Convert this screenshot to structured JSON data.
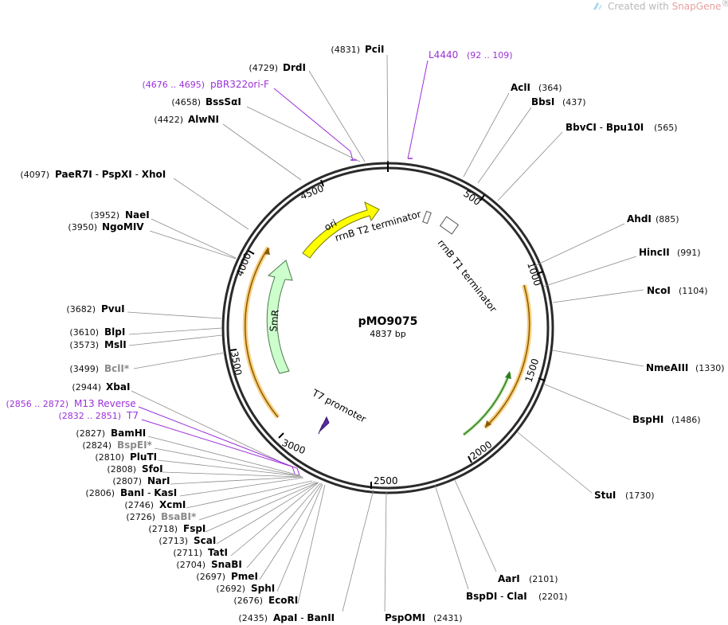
{
  "watermark": {
    "prefix": "Created with ",
    "brand": "SnapGene",
    "reg": "®",
    "icon": "snapgene-logo-icon"
  },
  "plasmid": {
    "name": "pMO9075",
    "length_label": "4837 bp",
    "length": 4837
  },
  "ruler": {
    "ticks": [
      "500",
      "1000",
      "1500",
      "2000",
      "2500",
      "3000",
      "3500",
      "4000",
      "4500"
    ]
  },
  "features": [
    {
      "key": "ori",
      "label": "ori",
      "start": 4470,
      "end": 4060,
      "direction": "forward",
      "color": "#ffff00"
    },
    {
      "key": "smr",
      "label": "SmR",
      "start": 3380,
      "end": 4005,
      "direction": "forward",
      "color": "#ccffcc"
    },
    {
      "key": "rrnb-t2",
      "label": "rrnB T2 terminator"
    },
    {
      "key": "rrnb-t1",
      "label": "rrnB T1 terminator"
    },
    {
      "key": "t7-promoter",
      "label": "T7 promoter"
    }
  ],
  "sites": {
    "top": [
      {
        "pos": "(4831)",
        "name": "PciI"
      },
      {
        "pos": "(4729)",
        "name": "DrdI"
      },
      {
        "pos": "(4676 .. 4695)",
        "name": "pBR322ori-F",
        "primer": true
      },
      {
        "pos": "(4658)",
        "name": "BssSαI"
      },
      {
        "pos": "(4422)",
        "name": "AlwNI"
      },
      {
        "pos": "(4097)",
        "name": "PaeR7I",
        "sep": " - ",
        "name2": "PspXI",
        "sep2": " - ",
        "name3": "XhoI"
      },
      {
        "pos": "(3952)",
        "name": "NaeI"
      },
      {
        "pos": "(3950)",
        "name": "NgoMIV"
      },
      {
        "pos": "(3682)",
        "name": "PvuI"
      },
      {
        "pos": "(3610)",
        "name": "BlpI"
      },
      {
        "pos": "(3573)",
        "name": "MslI"
      },
      {
        "pos": "(3499)",
        "name": "BclI",
        "star": "*",
        "gray": true
      },
      {
        "pos": "(2944)",
        "name": "XbaI"
      }
    ],
    "primers": [
      {
        "pos": "(2856 .. 2872)",
        "name": "M13 Reverse"
      },
      {
        "pos": "(2832 .. 2851)",
        "name": "T7"
      }
    ],
    "cluster": [
      {
        "pos": "(2827)",
        "name": "BamHI"
      },
      {
        "pos": "(2824)",
        "name": "BspEI",
        "star": "*",
        "gray": true
      },
      {
        "pos": "(2810)",
        "name": "PluTI"
      },
      {
        "pos": "(2808)",
        "name": "SfoI"
      },
      {
        "pos": "(2807)",
        "name": "NarI"
      },
      {
        "pos": "(2806)",
        "name": "BanI",
        "sep": " - ",
        "name2": "KasI"
      },
      {
        "pos": "(2746)",
        "name": "XcmI"
      },
      {
        "pos": "(2726)",
        "name": "BsaBI",
        "star": "*",
        "gray": true
      },
      {
        "pos": "(2718)",
        "name": "FspI"
      },
      {
        "pos": "(2713)",
        "name": "ScaI"
      },
      {
        "pos": "(2711)",
        "name": "TatI"
      },
      {
        "pos": "(2704)",
        "name": "SnaBI"
      },
      {
        "pos": "(2697)",
        "name": "PmeI"
      },
      {
        "pos": "(2692)",
        "name": "SphI"
      },
      {
        "pos": "(2676)",
        "name": "EcoRI"
      },
      {
        "pos": "(2435)",
        "name": "ApaI",
        "sep": " - ",
        "name2": "BanII"
      }
    ],
    "bottom": [
      {
        "pos": "(2431)",
        "name": "PspOMI"
      },
      {
        "pos": "(2201)",
        "name": "BspDI",
        "sep": " - ",
        "name2": "ClaI"
      },
      {
        "pos": "(2101)",
        "name": "AarI"
      }
    ],
    "right": [
      {
        "name": "L4440",
        "pos": "(92 .. 109)",
        "primer": true
      },
      {
        "name": "AclI",
        "pos": "(364)"
      },
      {
        "name": "BbsI",
        "pos": "(437)"
      },
      {
        "name": "BbvCI",
        "sep": " - ",
        "name2": "Bpu10I",
        "pos": "(565)"
      },
      {
        "name": "AhdI",
        "pos": "(885)"
      },
      {
        "name": "HincII",
        "pos": "(991)"
      },
      {
        "name": "NcoI",
        "pos": "(1104)"
      },
      {
        "name": "NmeAIII",
        "pos": "(1330)"
      },
      {
        "name": "BspHI",
        "pos": "(1486)"
      },
      {
        "name": "StuI",
        "pos": "(1730)"
      }
    ]
  }
}
